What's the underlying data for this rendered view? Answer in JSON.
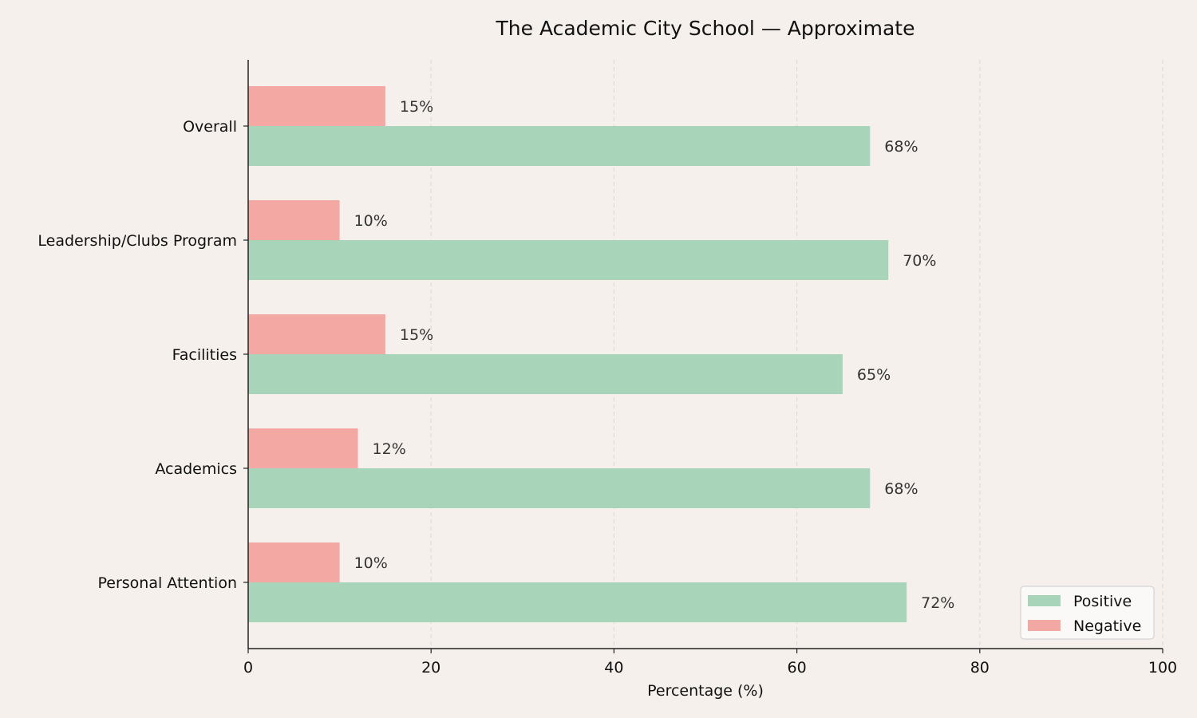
{
  "chart_data": {
    "type": "bar",
    "orientation": "horizontal",
    "title": "The Academic City School — Approximate",
    "xlabel": "Percentage (%)",
    "ylabel": "",
    "xlim": [
      0,
      100
    ],
    "xticks": [
      0,
      20,
      40,
      60,
      80,
      100
    ],
    "grid": "x, dashed",
    "legend_position": "bottom-right",
    "categories": [
      "Overall",
      "Leadership/Clubs Program",
      "Facilities",
      "Academics",
      "Personal Attention"
    ],
    "series": [
      {
        "name": "Positive",
        "color": "#a8d5b9",
        "values": [
          68,
          70,
          65,
          68,
          72
        ],
        "labels": [
          "68%",
          "70%",
          "65%",
          "68%",
          "72%"
        ]
      },
      {
        "name": "Negative",
        "color": "#f4a8a4",
        "values": [
          15,
          10,
          15,
          12,
          10
        ],
        "labels": [
          "15%",
          "10%",
          "15%",
          "12%",
          "10%"
        ]
      }
    ],
    "legend_order": [
      "Positive",
      "Negative"
    ]
  },
  "colors": {
    "background": "#f5f0eb",
    "axis": "#222222",
    "grid": "#dcd6d0"
  }
}
